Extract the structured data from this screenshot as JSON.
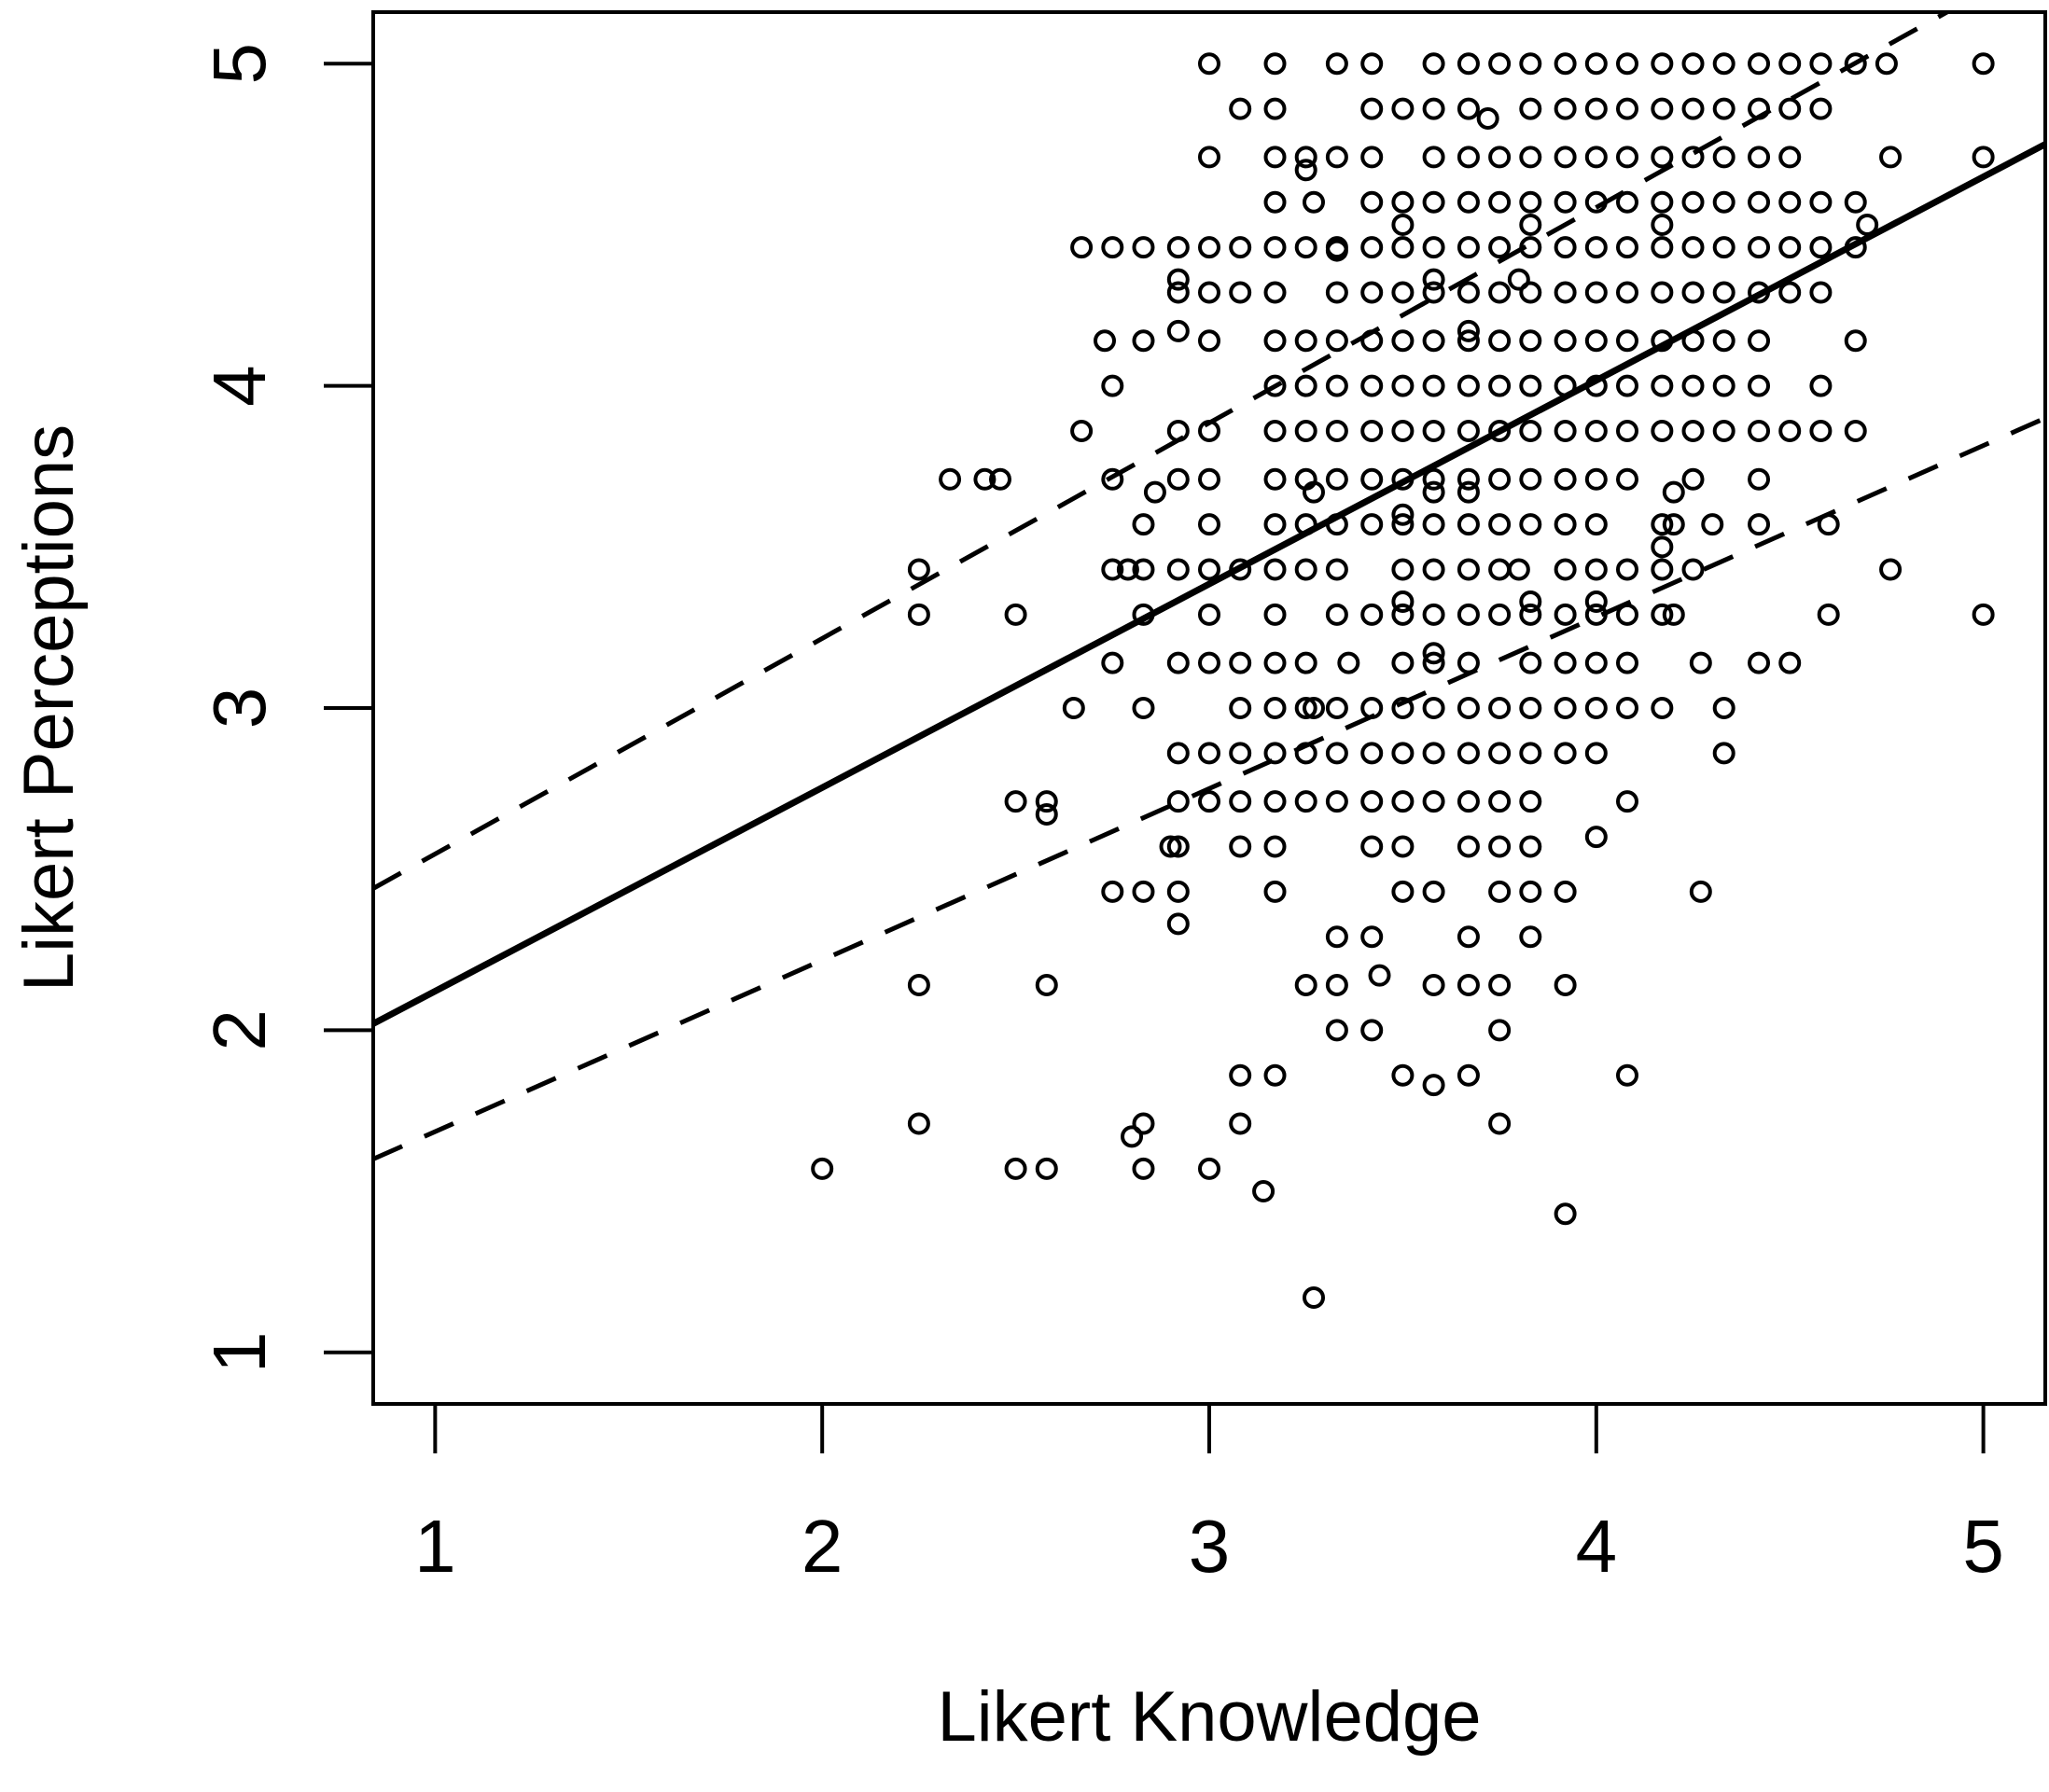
{
  "chart_data": {
    "type": "scatter",
    "title": "",
    "xlabel": "Likert Knowledge",
    "ylabel": "Likert Perceptions",
    "xlim": [
      0.84,
      5.16
    ],
    "ylim": [
      0.84,
      5.16
    ],
    "x_ticks": [
      "1",
      "2",
      "3",
      "4",
      "5"
    ],
    "y_ticks": [
      "1",
      "2",
      "3",
      "4",
      "5"
    ],
    "grid": false,
    "legend": "none",
    "marker": "open-circle",
    "colors": {
      "points": "#000000",
      "lines": "#000000",
      "background": "#ffffff"
    },
    "fit_line": {
      "style": "solid",
      "x": [
        0.84,
        5.16
      ],
      "y": [
        2.02,
        4.75
      ]
    },
    "interval_upper": {
      "style": "dashed",
      "x": [
        0.84,
        5.16
      ],
      "y": [
        2.44,
        5.33
      ]
    },
    "interval_lower": {
      "style": "dashed",
      "x": [
        0.84,
        5.16
      ],
      "y": [
        1.6,
        3.9
      ]
    },
    "points": [
      [
        2.0,
        1.57
      ],
      [
        2.25,
        1.71
      ],
      [
        2.5,
        1.57
      ],
      [
        2.58,
        1.57
      ],
      [
        2.8,
        1.67
      ],
      [
        2.83,
        1.71
      ],
      [
        2.83,
        1.57
      ],
      [
        3.0,
        1.57
      ],
      [
        3.08,
        1.71
      ],
      [
        3.08,
        1.86
      ],
      [
        3.17,
        1.86
      ],
      [
        3.14,
        1.5
      ],
      [
        3.27,
        1.17
      ],
      [
        3.92,
        1.43
      ],
      [
        3.5,
        1.86
      ],
      [
        3.58,
        1.83
      ],
      [
        3.67,
        1.86
      ],
      [
        3.75,
        1.71
      ],
      [
        4.08,
        1.86
      ],
      [
        2.25,
        2.14
      ],
      [
        2.58,
        2.14
      ],
      [
        3.25,
        2.14
      ],
      [
        3.33,
        2.14
      ],
      [
        3.42,
        2.29
      ],
      [
        3.44,
        2.17
      ],
      [
        3.33,
        2.29
      ],
      [
        3.58,
        2.14
      ],
      [
        3.67,
        2.14
      ],
      [
        3.75,
        2.14
      ],
      [
        3.92,
        2.14
      ],
      [
        3.67,
        2.29
      ],
      [
        3.83,
        2.29
      ],
      [
        3.33,
        2.0
      ],
      [
        3.42,
        2.0
      ],
      [
        3.75,
        2.0
      ],
      [
        2.75,
        2.43
      ],
      [
        2.83,
        2.43
      ],
      [
        2.92,
        2.43
      ],
      [
        2.92,
        2.33
      ],
      [
        3.17,
        2.43
      ],
      [
        3.5,
        2.43
      ],
      [
        3.58,
        2.43
      ],
      [
        3.75,
        2.43
      ],
      [
        3.83,
        2.43
      ],
      [
        3.92,
        2.43
      ],
      [
        4.27,
        2.43
      ],
      [
        2.92,
        2.57
      ],
      [
        2.9,
        2.57
      ],
      [
        3.08,
        2.57
      ],
      [
        3.17,
        2.57
      ],
      [
        3.42,
        2.57
      ],
      [
        3.5,
        2.57
      ],
      [
        3.67,
        2.57
      ],
      [
        3.75,
        2.57
      ],
      [
        3.83,
        2.57
      ],
      [
        4.0,
        2.6
      ],
      [
        2.5,
        2.71
      ],
      [
        2.58,
        2.71
      ],
      [
        2.58,
        2.67
      ],
      [
        2.92,
        2.71
      ],
      [
        3.0,
        2.71
      ],
      [
        3.08,
        2.71
      ],
      [
        3.17,
        2.71
      ],
      [
        3.25,
        2.71
      ],
      [
        3.33,
        2.71
      ],
      [
        3.42,
        2.71
      ],
      [
        3.5,
        2.71
      ],
      [
        3.58,
        2.71
      ],
      [
        3.67,
        2.71
      ],
      [
        3.75,
        2.71
      ],
      [
        3.83,
        2.71
      ],
      [
        4.08,
        2.71
      ],
      [
        2.92,
        2.86
      ],
      [
        3.0,
        2.86
      ],
      [
        3.08,
        2.86
      ],
      [
        3.17,
        2.86
      ],
      [
        3.25,
        2.86
      ],
      [
        3.33,
        2.86
      ],
      [
        3.42,
        2.86
      ],
      [
        3.5,
        2.86
      ],
      [
        3.58,
        2.86
      ],
      [
        3.67,
        2.86
      ],
      [
        3.75,
        2.86
      ],
      [
        3.83,
        2.86
      ],
      [
        3.92,
        2.86
      ],
      [
        4.0,
        2.86
      ],
      [
        4.33,
        2.86
      ],
      [
        2.65,
        3.0
      ],
      [
        2.83,
        3.0
      ],
      [
        3.08,
        3.0
      ],
      [
        3.17,
        3.0
      ],
      [
        3.25,
        3.0
      ],
      [
        3.27,
        3.0
      ],
      [
        3.33,
        3.0
      ],
      [
        3.42,
        3.0
      ],
      [
        3.5,
        3.0
      ],
      [
        3.58,
        3.0
      ],
      [
        3.67,
        3.0
      ],
      [
        3.75,
        3.0
      ],
      [
        3.83,
        3.0
      ],
      [
        3.92,
        3.0
      ],
      [
        4.0,
        3.0
      ],
      [
        4.08,
        3.0
      ],
      [
        4.17,
        3.0
      ],
      [
        4.33,
        3.0
      ],
      [
        2.75,
        3.14
      ],
      [
        2.92,
        3.14
      ],
      [
        3.0,
        3.14
      ],
      [
        3.08,
        3.14
      ],
      [
        3.17,
        3.14
      ],
      [
        3.25,
        3.14
      ],
      [
        3.36,
        3.14
      ],
      [
        3.5,
        3.14
      ],
      [
        3.58,
        3.14
      ],
      [
        3.58,
        3.17
      ],
      [
        3.67,
        3.14
      ],
      [
        3.83,
        3.14
      ],
      [
        3.92,
        3.14
      ],
      [
        4.0,
        3.14
      ],
      [
        4.08,
        3.14
      ],
      [
        4.27,
        3.14
      ],
      [
        4.42,
        3.14
      ],
      [
        4.5,
        3.14
      ],
      [
        2.25,
        3.29
      ],
      [
        2.5,
        3.29
      ],
      [
        2.83,
        3.29
      ],
      [
        3.0,
        3.29
      ],
      [
        3.17,
        3.29
      ],
      [
        3.33,
        3.29
      ],
      [
        3.42,
        3.29
      ],
      [
        3.5,
        3.29
      ],
      [
        3.5,
        3.33
      ],
      [
        3.58,
        3.29
      ],
      [
        3.67,
        3.29
      ],
      [
        3.75,
        3.29
      ],
      [
        3.83,
        3.29
      ],
      [
        3.83,
        3.33
      ],
      [
        3.92,
        3.29
      ],
      [
        4.0,
        3.29
      ],
      [
        4.0,
        3.33
      ],
      [
        4.08,
        3.29
      ],
      [
        4.17,
        3.29
      ],
      [
        4.2,
        3.29
      ],
      [
        4.6,
        3.29
      ],
      [
        5.0,
        3.29
      ],
      [
        2.25,
        3.43
      ],
      [
        2.75,
        3.43
      ],
      [
        2.79,
        3.43
      ],
      [
        2.83,
        3.43
      ],
      [
        2.92,
        3.43
      ],
      [
        3.0,
        3.43
      ],
      [
        3.08,
        3.43
      ],
      [
        3.17,
        3.43
      ],
      [
        3.25,
        3.43
      ],
      [
        3.33,
        3.43
      ],
      [
        3.5,
        3.43
      ],
      [
        3.58,
        3.43
      ],
      [
        3.67,
        3.43
      ],
      [
        3.75,
        3.43
      ],
      [
        3.8,
        3.43
      ],
      [
        3.92,
        3.43
      ],
      [
        4.0,
        3.43
      ],
      [
        4.08,
        3.43
      ],
      [
        4.17,
        3.43
      ],
      [
        4.25,
        3.43
      ],
      [
        4.76,
        3.43
      ],
      [
        2.83,
        3.57
      ],
      [
        3.0,
        3.57
      ],
      [
        3.17,
        3.57
      ],
      [
        3.25,
        3.57
      ],
      [
        3.33,
        3.57
      ],
      [
        3.42,
        3.57
      ],
      [
        3.5,
        3.57
      ],
      [
        3.5,
        3.6
      ],
      [
        3.58,
        3.57
      ],
      [
        3.67,
        3.57
      ],
      [
        3.75,
        3.57
      ],
      [
        3.83,
        3.57
      ],
      [
        3.92,
        3.57
      ],
      [
        4.0,
        3.57
      ],
      [
        4.17,
        3.57
      ],
      [
        4.17,
        3.5
      ],
      [
        4.2,
        3.57
      ],
      [
        4.3,
        3.57
      ],
      [
        4.42,
        3.57
      ],
      [
        4.6,
        3.57
      ],
      [
        2.86,
        3.67
      ],
      [
        3.27,
        3.67
      ],
      [
        3.58,
        3.67
      ],
      [
        3.67,
        3.67
      ],
      [
        4.2,
        3.67
      ],
      [
        2.33,
        3.71
      ],
      [
        2.42,
        3.71
      ],
      [
        2.46,
        3.71
      ],
      [
        2.75,
        3.71
      ],
      [
        2.92,
        3.71
      ],
      [
        3.0,
        3.71
      ],
      [
        3.17,
        3.71
      ],
      [
        3.25,
        3.71
      ],
      [
        3.33,
        3.71
      ],
      [
        3.42,
        3.71
      ],
      [
        3.5,
        3.71
      ],
      [
        3.58,
        3.71
      ],
      [
        3.67,
        3.71
      ],
      [
        3.75,
        3.71
      ],
      [
        3.83,
        3.71
      ],
      [
        3.92,
        3.71
      ],
      [
        4.0,
        3.71
      ],
      [
        4.08,
        3.71
      ],
      [
        4.25,
        3.71
      ],
      [
        4.42,
        3.71
      ],
      [
        2.67,
        3.86
      ],
      [
        2.92,
        3.86
      ],
      [
        3.0,
        3.86
      ],
      [
        3.17,
        3.86
      ],
      [
        3.25,
        3.86
      ],
      [
        3.33,
        3.86
      ],
      [
        3.42,
        3.86
      ],
      [
        3.5,
        3.86
      ],
      [
        3.58,
        3.86
      ],
      [
        3.67,
        3.86
      ],
      [
        3.75,
        3.86
      ],
      [
        3.83,
        3.86
      ],
      [
        3.92,
        3.86
      ],
      [
        4.0,
        3.86
      ],
      [
        4.08,
        3.86
      ],
      [
        4.17,
        3.86
      ],
      [
        4.25,
        3.86
      ],
      [
        4.33,
        3.86
      ],
      [
        4.42,
        3.86
      ],
      [
        4.5,
        3.86
      ],
      [
        4.58,
        3.86
      ],
      [
        4.67,
        3.86
      ],
      [
        2.75,
        4.0
      ],
      [
        3.17,
        4.0
      ],
      [
        3.25,
        4.0
      ],
      [
        3.33,
        4.0
      ],
      [
        3.42,
        4.0
      ],
      [
        3.5,
        4.0
      ],
      [
        3.58,
        4.0
      ],
      [
        3.67,
        4.0
      ],
      [
        3.75,
        4.0
      ],
      [
        3.83,
        4.0
      ],
      [
        3.92,
        4.0
      ],
      [
        4.0,
        4.0
      ],
      [
        4.08,
        4.0
      ],
      [
        4.17,
        4.0
      ],
      [
        4.25,
        4.0
      ],
      [
        4.33,
        4.0
      ],
      [
        4.42,
        4.0
      ],
      [
        4.58,
        4.0
      ],
      [
        2.73,
        4.14
      ],
      [
        2.83,
        4.14
      ],
      [
        2.92,
        4.17
      ],
      [
        3.0,
        4.14
      ],
      [
        3.17,
        4.14
      ],
      [
        3.25,
        4.14
      ],
      [
        3.33,
        4.14
      ],
      [
        3.42,
        4.14
      ],
      [
        3.5,
        4.14
      ],
      [
        3.58,
        4.14
      ],
      [
        3.67,
        4.14
      ],
      [
        3.67,
        4.17
      ],
      [
        3.75,
        4.14
      ],
      [
        3.83,
        4.14
      ],
      [
        3.92,
        4.14
      ],
      [
        4.0,
        4.14
      ],
      [
        4.08,
        4.14
      ],
      [
        4.17,
        4.14
      ],
      [
        4.25,
        4.14
      ],
      [
        4.33,
        4.14
      ],
      [
        4.42,
        4.14
      ],
      [
        4.67,
        4.14
      ],
      [
        2.92,
        4.29
      ],
      [
        2.92,
        4.33
      ],
      [
        3.0,
        4.29
      ],
      [
        3.08,
        4.29
      ],
      [
        3.17,
        4.29
      ],
      [
        3.33,
        4.29
      ],
      [
        3.42,
        4.29
      ],
      [
        3.5,
        4.29
      ],
      [
        3.58,
        4.29
      ],
      [
        3.58,
        4.33
      ],
      [
        3.67,
        4.29
      ],
      [
        3.75,
        4.29
      ],
      [
        3.8,
        4.33
      ],
      [
        3.83,
        4.29
      ],
      [
        3.92,
        4.29
      ],
      [
        4.0,
        4.29
      ],
      [
        4.08,
        4.29
      ],
      [
        4.17,
        4.29
      ],
      [
        4.25,
        4.29
      ],
      [
        4.33,
        4.29
      ],
      [
        4.42,
        4.29
      ],
      [
        4.5,
        4.29
      ],
      [
        4.58,
        4.29
      ],
      [
        2.67,
        4.43
      ],
      [
        2.75,
        4.43
      ],
      [
        2.83,
        4.43
      ],
      [
        2.92,
        4.43
      ],
      [
        3.0,
        4.43
      ],
      [
        3.08,
        4.43
      ],
      [
        3.17,
        4.43
      ],
      [
        3.25,
        4.43
      ],
      [
        3.33,
        4.43
      ],
      [
        3.33,
        4.42
      ],
      [
        3.42,
        4.43
      ],
      [
        3.5,
        4.43
      ],
      [
        3.58,
        4.43
      ],
      [
        3.67,
        4.43
      ],
      [
        3.75,
        4.43
      ],
      [
        3.83,
        4.43
      ],
      [
        3.92,
        4.43
      ],
      [
        4.0,
        4.43
      ],
      [
        4.08,
        4.43
      ],
      [
        4.17,
        4.43
      ],
      [
        4.25,
        4.43
      ],
      [
        4.33,
        4.43
      ],
      [
        4.42,
        4.43
      ],
      [
        4.5,
        4.43
      ],
      [
        4.58,
        4.43
      ],
      [
        4.67,
        4.43
      ],
      [
        4.7,
        4.5
      ],
      [
        3.5,
        4.5
      ],
      [
        3.83,
        4.5
      ],
      [
        4.17,
        4.5
      ],
      [
        3.17,
        4.57
      ],
      [
        3.27,
        4.57
      ],
      [
        3.42,
        4.57
      ],
      [
        3.5,
        4.57
      ],
      [
        3.58,
        4.57
      ],
      [
        3.67,
        4.57
      ],
      [
        3.75,
        4.57
      ],
      [
        3.83,
        4.57
      ],
      [
        3.92,
        4.57
      ],
      [
        4.0,
        4.57
      ],
      [
        4.08,
        4.57
      ],
      [
        4.17,
        4.57
      ],
      [
        4.25,
        4.57
      ],
      [
        4.33,
        4.57
      ],
      [
        4.42,
        4.57
      ],
      [
        4.5,
        4.57
      ],
      [
        4.58,
        4.57
      ],
      [
        4.67,
        4.57
      ],
      [
        3.0,
        4.71
      ],
      [
        3.17,
        4.71
      ],
      [
        3.25,
        4.71
      ],
      [
        3.25,
        4.67
      ],
      [
        3.33,
        4.71
      ],
      [
        3.42,
        4.71
      ],
      [
        3.58,
        4.71
      ],
      [
        3.67,
        4.71
      ],
      [
        3.75,
        4.71
      ],
      [
        3.83,
        4.71
      ],
      [
        3.92,
        4.71
      ],
      [
        4.0,
        4.71
      ],
      [
        4.08,
        4.71
      ],
      [
        4.17,
        4.71
      ],
      [
        4.25,
        4.71
      ],
      [
        4.33,
        4.71
      ],
      [
        4.42,
        4.71
      ],
      [
        4.5,
        4.71
      ],
      [
        4.76,
        4.71
      ],
      [
        5.0,
        4.71
      ],
      [
        3.08,
        4.86
      ],
      [
        3.17,
        4.86
      ],
      [
        3.42,
        4.86
      ],
      [
        3.5,
        4.86
      ],
      [
        3.58,
        4.86
      ],
      [
        3.67,
        4.86
      ],
      [
        3.72,
        4.83
      ],
      [
        3.83,
        4.86
      ],
      [
        3.92,
        4.86
      ],
      [
        4.0,
        4.86
      ],
      [
        4.08,
        4.86
      ],
      [
        4.17,
        4.86
      ],
      [
        4.25,
        4.86
      ],
      [
        4.33,
        4.86
      ],
      [
        4.42,
        4.86
      ],
      [
        4.5,
        4.86
      ],
      [
        4.58,
        4.86
      ],
      [
        3.0,
        5.0
      ],
      [
        3.17,
        5.0
      ],
      [
        3.33,
        5.0
      ],
      [
        3.42,
        5.0
      ],
      [
        3.58,
        5.0
      ],
      [
        3.67,
        5.0
      ],
      [
        3.75,
        5.0
      ],
      [
        3.83,
        5.0
      ],
      [
        3.92,
        5.0
      ],
      [
        4.0,
        5.0
      ],
      [
        4.08,
        5.0
      ],
      [
        4.17,
        5.0
      ],
      [
        4.25,
        5.0
      ],
      [
        4.33,
        5.0
      ],
      [
        4.42,
        5.0
      ],
      [
        4.5,
        5.0
      ],
      [
        4.58,
        5.0
      ],
      [
        4.67,
        5.0
      ],
      [
        4.75,
        5.0
      ],
      [
        5.0,
        5.0
      ]
    ]
  }
}
